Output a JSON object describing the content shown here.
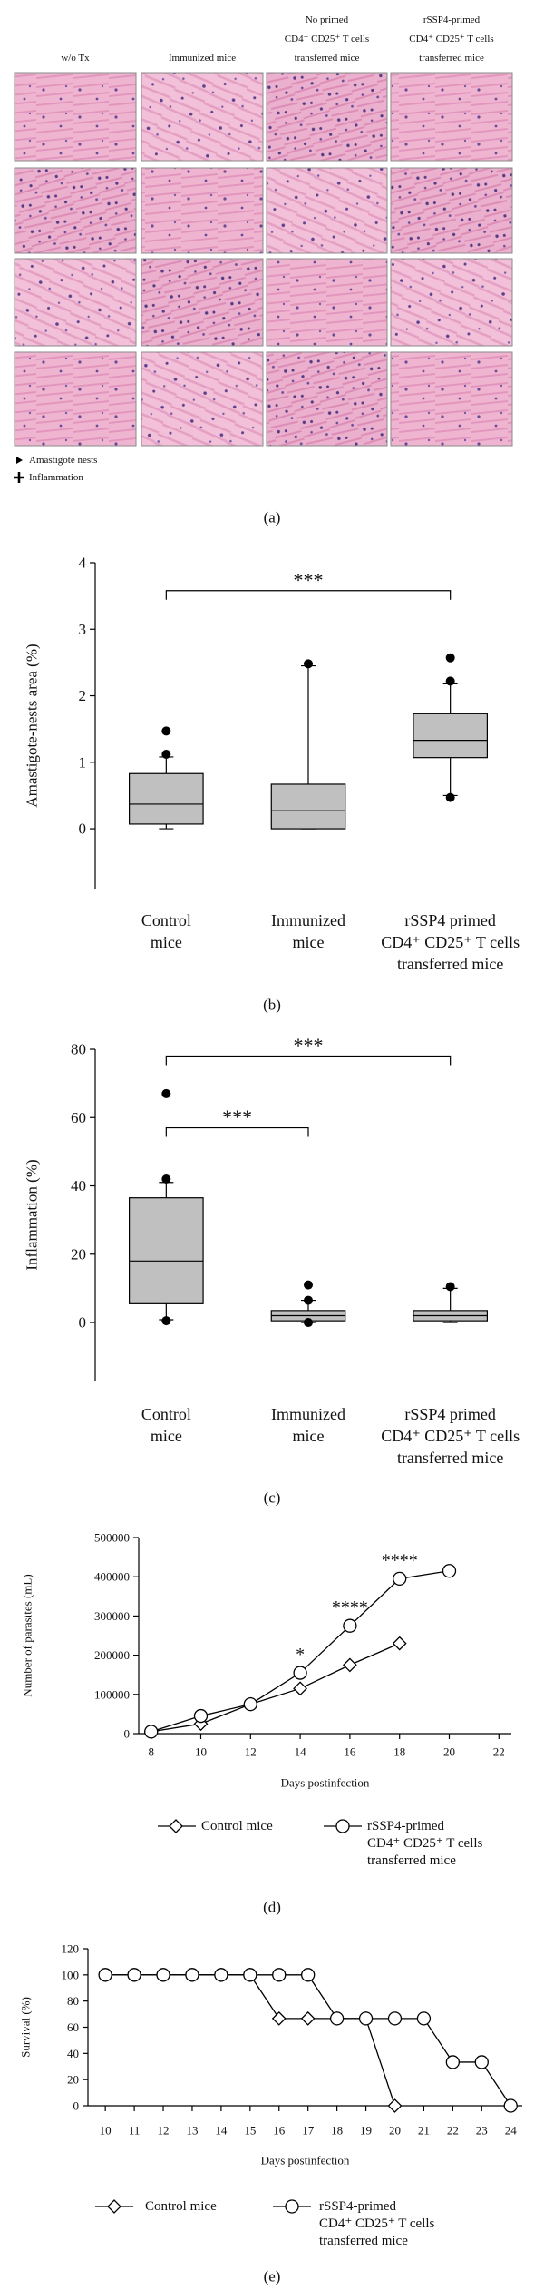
{
  "panel_a": {
    "columns": [
      [
        "w/o Tx"
      ],
      [
        "Immunized mice"
      ],
      [
        "No primed",
        "CD4⁺ CD25⁺ T cells",
        "transferred mice"
      ],
      [
        "rSSP4-primed",
        "CD4⁺ CD25⁺ T cells",
        "transferred mice"
      ]
    ],
    "legend": [
      "Amastigote nests",
      "Inflammation"
    ],
    "label": "(a)"
  },
  "chart_data": [
    {
      "type": "box",
      "panel_label": "(b)",
      "ylabel": "Amastigote-nests area (%)",
      "categories": [
        [
          "Control",
          "mice"
        ],
        [
          "Immunized",
          "mice"
        ],
        [
          "rSSP4 primed",
          "CD4⁺ CD25⁺ T cells",
          "transferred mice"
        ]
      ],
      "boxes": [
        {
          "whisker_low": 0,
          "q1": 0.07,
          "median": 0.37,
          "q3": 0.83,
          "whisker_high": 1.08,
          "outliers": [
            1.12,
            1.47
          ]
        },
        {
          "whisker_low": 0,
          "q1": 0,
          "median": 0.27,
          "q3": 0.67,
          "whisker_high": 2.45,
          "outliers": [
            2.48
          ]
        },
        {
          "whisker_low": 0.5,
          "q1": 1.07,
          "median": 1.33,
          "q3": 1.73,
          "whisker_high": 2.18,
          "outliers": [
            0.47,
            2.22,
            2.57
          ]
        }
      ],
      "color": "#c0c0c0",
      "ylim": [
        -0.9,
        4
      ],
      "yticks": [
        0,
        1,
        2,
        3,
        4
      ],
      "brackets": [
        {
          "between": [
            0,
            2
          ],
          "y": 3.58,
          "text": "***"
        }
      ]
    },
    {
      "type": "box",
      "panel_label": "(c)",
      "ylabel": "Inflammation (%)",
      "categories": [
        [
          "Control",
          "mice"
        ],
        [
          "Immunized",
          "mice"
        ],
        [
          "rSSP4 primed",
          "CD4⁺ CD25⁺ T cells",
          "transferred mice"
        ]
      ],
      "boxes": [
        {
          "whisker_low": 0.8,
          "q1": 5.5,
          "median": 18,
          "q3": 36.5,
          "whisker_high": 41,
          "outliers": [
            0.5,
            42,
            67
          ]
        },
        {
          "whisker_low": 0,
          "q1": 0.5,
          "median": 2,
          "q3": 3.5,
          "whisker_high": 6.5,
          "outliers": [
            0,
            6.5,
            11
          ]
        },
        {
          "whisker_low": 0,
          "q1": 0.5,
          "median": 2,
          "q3": 3.5,
          "whisker_high": 10,
          "outliers": [
            10.5
          ]
        }
      ],
      "color": "#c0c0c0",
      "ylim": [
        -17,
        80
      ],
      "yticks": [
        0,
        20,
        40,
        60,
        80
      ],
      "brackets": [
        {
          "between": [
            0,
            2
          ],
          "y": 78,
          "text": "***"
        },
        {
          "between": [
            0,
            1
          ],
          "y": 57,
          "text": "***"
        }
      ]
    },
    {
      "type": "line",
      "panel_label": "(d)",
      "ylabel": "Number of parasites (mL)",
      "xlabel": "Days postinfection",
      "series": [
        {
          "name": [
            "Control mice"
          ],
          "color": "#000000",
          "marker": "diamond",
          "x": [
            8,
            10,
            12,
            14,
            16,
            18
          ],
          "values": [
            5000,
            25000,
            75000,
            115000,
            175000,
            230000
          ]
        },
        {
          "name": [
            "rSSP4-primed",
            "CD4⁺ CD25⁺ T cells",
            "transferred mice"
          ],
          "color": "#000000",
          "marker": "circle",
          "x": [
            8,
            10,
            12,
            14,
            16,
            18,
            20
          ],
          "values": [
            5000,
            45000,
            75000,
            155000,
            275000,
            395000,
            415000
          ]
        }
      ],
      "xlim": [
        7.5,
        22.5
      ],
      "xticks": [
        8,
        10,
        12,
        14,
        16,
        18,
        20,
        22
      ],
      "ylim": [
        0,
        500000
      ],
      "yticks": [
        0,
        100000,
        200000,
        300000,
        400000,
        500000
      ],
      "annotations": [
        {
          "text": "*",
          "x": 14
        },
        {
          "text": "****",
          "x": 16
        },
        {
          "text": "****",
          "x": 18
        }
      ]
    },
    {
      "type": "line",
      "panel_label": "(e)",
      "ylabel": "Survival (%)",
      "xlabel": "Days postinfection",
      "series": [
        {
          "name": [
            "Control mice"
          ],
          "color": "#000000",
          "marker": "diamond",
          "x": [
            10,
            11,
            12,
            13,
            14,
            15,
            16,
            17,
            18,
            19,
            20
          ],
          "values": [
            100,
            100,
            100,
            100,
            100,
            100,
            66.67,
            66.67,
            66.67,
            66.67,
            0
          ]
        },
        {
          "name": [
            "rSSP4-primed",
            "CD4⁺ CD25⁺ T cells",
            "transferred mice"
          ],
          "color": "#000000",
          "marker": "circle",
          "x": [
            10,
            11,
            12,
            13,
            14,
            15,
            16,
            17,
            18,
            19,
            20,
            21,
            22,
            23,
            24
          ],
          "values": [
            100,
            100,
            100,
            100,
            100,
            100,
            100,
            100,
            66.67,
            66.67,
            66.67,
            66.67,
            33.33,
            33.33,
            0
          ]
        }
      ],
      "xlim": [
        9.4,
        24.4
      ],
      "xticks": [
        10,
        11,
        12,
        13,
        14,
        15,
        16,
        17,
        18,
        19,
        20,
        21,
        22,
        23,
        24
      ],
      "ylim": [
        0,
        120
      ],
      "yticks": [
        0,
        20,
        40,
        60,
        80,
        100,
        120
      ]
    }
  ]
}
